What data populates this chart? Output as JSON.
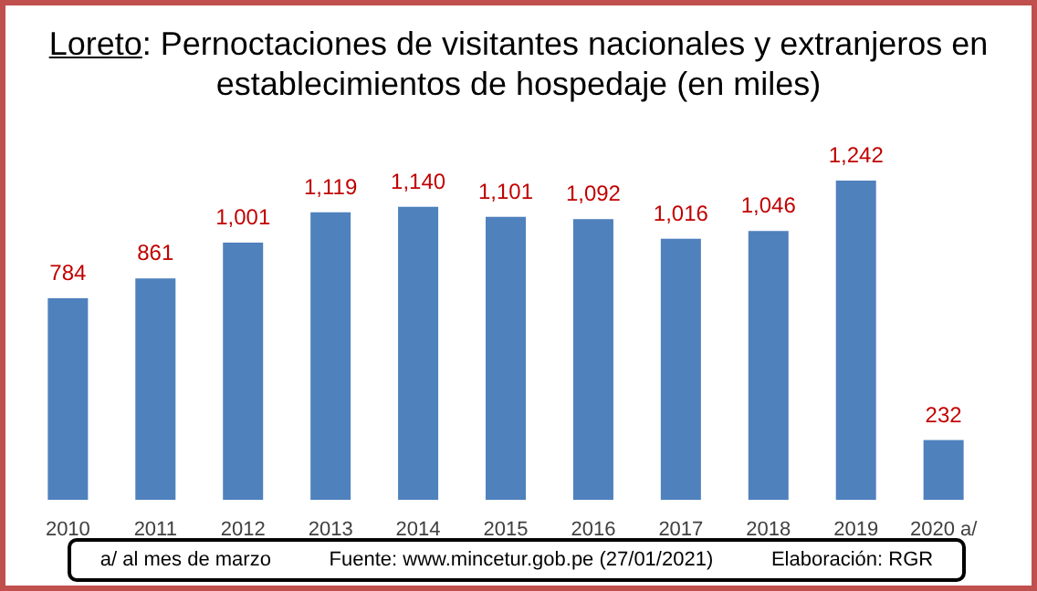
{
  "chart_data": {
    "type": "bar",
    "title": "Loreto: Pernoctaciones de visitantes nacionales y extranjeros en establecimientos de hospedaje (en miles)",
    "categories": [
      "2010",
      "2011",
      "2012",
      "2013",
      "2014",
      "2015",
      "2016",
      "2017",
      "2018",
      "2019",
      "2020 a/"
    ],
    "values": [
      784,
      861,
      1001,
      1119,
      1140,
      1101,
      1092,
      1016,
      1046,
      1242,
      232
    ],
    "color": "#4f81bd",
    "value_labels": [
      "784",
      "861",
      "1,001",
      "1,119",
      "1,140",
      "1,101",
      "1,092",
      "1,016",
      "1,046",
      "1,242",
      "232"
    ],
    "annotations": [
      "a/ al mes de marzo",
      "Fuente: www.mincetur.gob.pe (27/01/2021)",
      "Elaboración: RGR"
    ]
  }
}
